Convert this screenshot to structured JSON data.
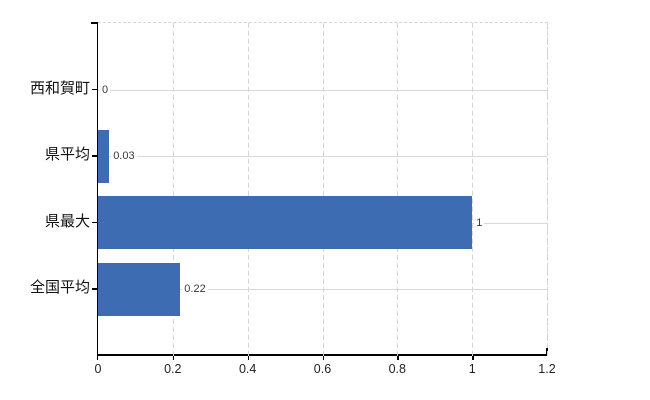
{
  "chart_data": {
    "type": "bar",
    "orientation": "horizontal",
    "title": "",
    "xlabel": "",
    "ylabel": "",
    "categories": [
      "西和賀町",
      "県平均",
      "県最大",
      "全国平均"
    ],
    "values": [
      0,
      0.03,
      1,
      0.22
    ],
    "value_labels": [
      "0",
      "0.03",
      "1",
      "0.22"
    ],
    "x_ticks": [
      0,
      0.2,
      0.4,
      0.6,
      0.8,
      1,
      1.2
    ],
    "x_tick_labels": [
      "0",
      "0.2",
      "0.4",
      "0.6",
      "0.8",
      "1",
      "1.2"
    ],
    "xlim": [
      0,
      1.2
    ],
    "grid": true,
    "legend": false,
    "colors": {
      "bar": "#3d6cb3",
      "axis": "#000000",
      "grid_vertical": "#d4d4d4",
      "grid_horizontal": "#d9d9d9",
      "background": "#ffffff",
      "text": "#111111",
      "value_text": "#3a3a3a"
    }
  }
}
